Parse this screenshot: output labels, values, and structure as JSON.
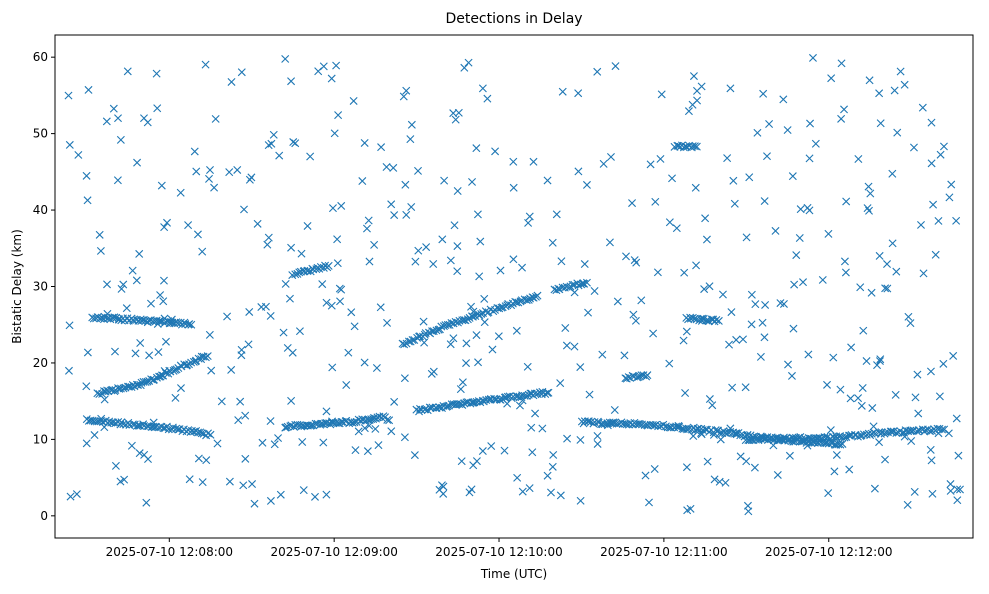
{
  "chart_data": {
    "type": "scatter",
    "title": "Detections in Delay",
    "xlabel": "Time (UTC)",
    "ylabel": "Bistatic Delay (km)",
    "marker": "x",
    "color": "#1f77b4",
    "grid": false,
    "legend": null,
    "x_ticks": [
      {
        "t": 30,
        "label": "2025-07-10 12:08:00"
      },
      {
        "t": 90,
        "label": "2025-07-10 12:09:00"
      },
      {
        "t": 150,
        "label": "2025-07-10 12:10:00"
      },
      {
        "t": 210,
        "label": "2025-07-10 12:11:00"
      },
      {
        "t": 270,
        "label": "2025-07-10 12:12:00"
      }
    ],
    "y_ticks": [
      0,
      10,
      20,
      30,
      40,
      50,
      60
    ],
    "xlim_seconds_after_12_07_30": [
      -11.6,
      322.5
    ],
    "ylim": [
      -2.9,
      62.9
    ],
    "tracks": [
      {
        "name": "track-a",
        "points": [
          [
            0,
            12.5
          ],
          [
            3,
            12.4
          ],
          [
            6,
            12.3
          ],
          [
            9,
            12.2
          ],
          [
            12,
            12.1
          ],
          [
            15,
            12.0
          ],
          [
            18,
            11.9
          ],
          [
            21,
            11.8
          ],
          [
            24,
            11.7
          ],
          [
            27,
            11.6
          ],
          [
            30,
            11.5
          ],
          [
            33,
            11.3
          ],
          [
            36,
            11.1
          ],
          [
            39,
            11.0
          ],
          [
            42,
            10.8
          ],
          [
            45,
            10.6
          ]
        ]
      },
      {
        "name": "track-b",
        "points": [
          [
            72,
            11.7
          ],
          [
            76,
            11.8
          ],
          [
            80,
            11.9
          ],
          [
            84,
            12.0
          ],
          [
            88,
            12.1
          ],
          [
            92,
            12.2
          ],
          [
            96,
            12.3
          ],
          [
            100,
            12.5
          ],
          [
            104,
            12.7
          ],
          [
            108,
            12.9
          ],
          [
            110,
            12.5
          ]
        ]
      },
      {
        "name": "track-c",
        "points": [
          [
            120,
            13.8
          ],
          [
            124,
            14.0
          ],
          [
            128,
            14.2
          ],
          [
            132,
            14.4
          ],
          [
            136,
            14.6
          ],
          [
            140,
            14.8
          ],
          [
            144,
            15.0
          ],
          [
            148,
            15.2
          ],
          [
            152,
            15.4
          ],
          [
            156,
            15.6
          ],
          [
            160,
            15.8
          ],
          [
            164,
            16.0
          ],
          [
            168,
            16.1
          ]
        ]
      },
      {
        "name": "track-d",
        "points": [
          [
            115,
            22.5
          ],
          [
            120,
            23.2
          ],
          [
            125,
            24.0
          ],
          [
            130,
            24.8
          ],
          [
            135,
            25.4
          ],
          [
            140,
            26.0
          ],
          [
            145,
            26.6
          ],
          [
            150,
            27.2
          ],
          [
            155,
            27.8
          ],
          [
            160,
            28.3
          ],
          [
            164,
            28.8
          ]
        ]
      },
      {
        "name": "track-e",
        "points": [
          [
            170,
            29.5
          ],
          [
            173,
            29.8
          ],
          [
            176,
            30.1
          ],
          [
            179,
            30.3
          ],
          [
            182,
            30.5
          ]
        ]
      },
      {
        "name": "track-f",
        "points": [
          [
            180,
            12.2
          ],
          [
            185,
            12.2
          ],
          [
            190,
            12.1
          ],
          [
            195,
            12.1
          ],
          [
            200,
            12.0
          ],
          [
            205,
            11.9
          ],
          [
            210,
            11.8
          ],
          [
            215,
            11.6
          ],
          [
            220,
            11.4
          ],
          [
            225,
            11.2
          ],
          [
            230,
            11.0
          ],
          [
            235,
            10.8
          ],
          [
            240,
            10.5
          ],
          [
            245,
            10.3
          ],
          [
            250,
            10.1
          ],
          [
            255,
            9.9
          ],
          [
            260,
            9.8
          ],
          [
            265,
            9.6
          ],
          [
            270,
            9.5
          ],
          [
            275,
            9.4
          ]
        ]
      },
      {
        "name": "track-g",
        "points": [
          [
            240,
            10.0
          ],
          [
            248,
            10.0
          ],
          [
            256,
            10.1
          ],
          [
            264,
            10.2
          ],
          [
            272,
            10.3
          ],
          [
            280,
            10.5
          ],
          [
            288,
            10.8
          ],
          [
            296,
            11.0
          ],
          [
            304,
            11.2
          ],
          [
            312,
            11.3
          ]
        ]
      },
      {
        "name": "track-h",
        "points": [
          [
            75,
            31.5
          ],
          [
            80,
            32.0
          ],
          [
            84,
            32.4
          ],
          [
            88,
            32.7
          ]
        ]
      },
      {
        "name": "track-i",
        "points": [
          [
            2,
            26.0
          ],
          [
            6,
            25.9
          ],
          [
            10,
            25.8
          ],
          [
            14,
            25.7
          ],
          [
            18,
            25.6
          ],
          [
            22,
            25.5
          ],
          [
            26,
            25.4
          ],
          [
            30,
            25.3
          ],
          [
            34,
            25.2
          ],
          [
            38,
            25.0
          ]
        ]
      },
      {
        "name": "track-j",
        "points": [
          [
            4,
            16.0
          ],
          [
            8,
            16.3
          ],
          [
            12,
            16.6
          ],
          [
            16,
            16.9
          ],
          [
            20,
            17.3
          ],
          [
            24,
            17.8
          ],
          [
            28,
            18.5
          ],
          [
            32,
            19.2
          ],
          [
            36,
            19.8
          ],
          [
            40,
            20.4
          ],
          [
            44,
            20.9
          ]
        ]
      },
      {
        "name": "track-k",
        "points": [
          [
            196,
            18.0
          ],
          [
            200,
            18.2
          ],
          [
            204,
            18.4
          ]
        ]
      },
      {
        "name": "track-l",
        "points": [
          [
            218,
            25.8
          ],
          [
            222,
            25.7
          ],
          [
            226,
            25.6
          ],
          [
            230,
            25.5
          ]
        ]
      },
      {
        "name": "track-m",
        "points": [
          [
            214,
            48.3
          ],
          [
            218,
            48.3
          ],
          [
            222,
            48.3
          ]
        ]
      }
    ],
    "noise": {
      "count": 520,
      "seed": 20250710,
      "x_range": [
        -8,
        318
      ],
      "y_range": [
        0.5,
        60
      ]
    }
  }
}
